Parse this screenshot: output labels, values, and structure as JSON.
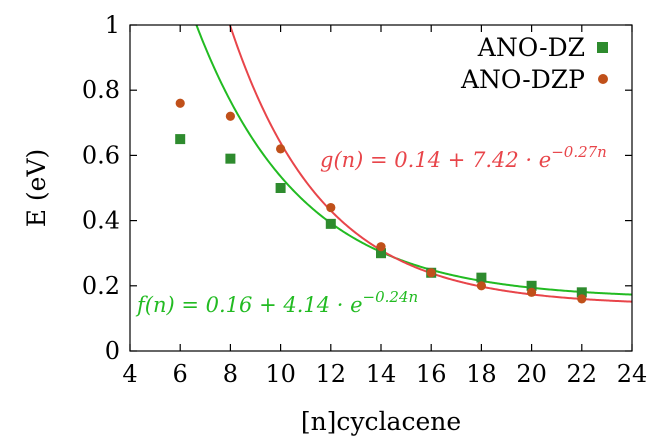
{
  "chart_data": {
    "type": "scatter",
    "title": "",
    "xlabel": "[n]cyclacene",
    "ylabel": "E (eV)",
    "xlim": [
      4,
      24
    ],
    "ylim": [
      0,
      1
    ],
    "x_ticks": [
      4,
      6,
      8,
      10,
      12,
      14,
      16,
      18,
      20,
      22,
      24
    ],
    "y_ticks": [
      0,
      0.2,
      0.4,
      0.6,
      0.8,
      1
    ],
    "y_tick_labels": [
      "0",
      "0.2",
      "0.4",
      "0.6",
      "0.8",
      "1"
    ],
    "grid": false,
    "legend_position": "top-right",
    "series": [
      {
        "name": "ANO-DZ",
        "marker": "square",
        "color": "#2e8b2e",
        "x": [
          6,
          8,
          10,
          12,
          14,
          16,
          18,
          20,
          22
        ],
        "y": [
          0.65,
          0.59,
          0.5,
          0.39,
          0.3,
          0.24,
          0.225,
          0.2,
          0.18
        ]
      },
      {
        "name": "ANO-DZP",
        "marker": "circle",
        "color": "#c0501a",
        "x": [
          6,
          8,
          10,
          12,
          14,
          16,
          18,
          20,
          22
        ],
        "y": [
          0.76,
          0.72,
          0.62,
          0.44,
          0.32,
          0.24,
          0.2,
          0.18,
          0.16
        ]
      }
    ],
    "fits": [
      {
        "name": "f(n)",
        "color": "#22bb22",
        "a": 0.16,
        "b": 4.14,
        "c": -0.24,
        "label_main": "f(n) = 0.16 + 4.14 · e",
        "label_exp": "−0.24n"
      },
      {
        "name": "g(n)",
        "color": "#e8454a",
        "a": 0.14,
        "b": 7.42,
        "c": -0.27,
        "label_main": "g(n) = 0.14 + 7.42 · e",
        "label_exp": "−0.27n"
      }
    ]
  }
}
